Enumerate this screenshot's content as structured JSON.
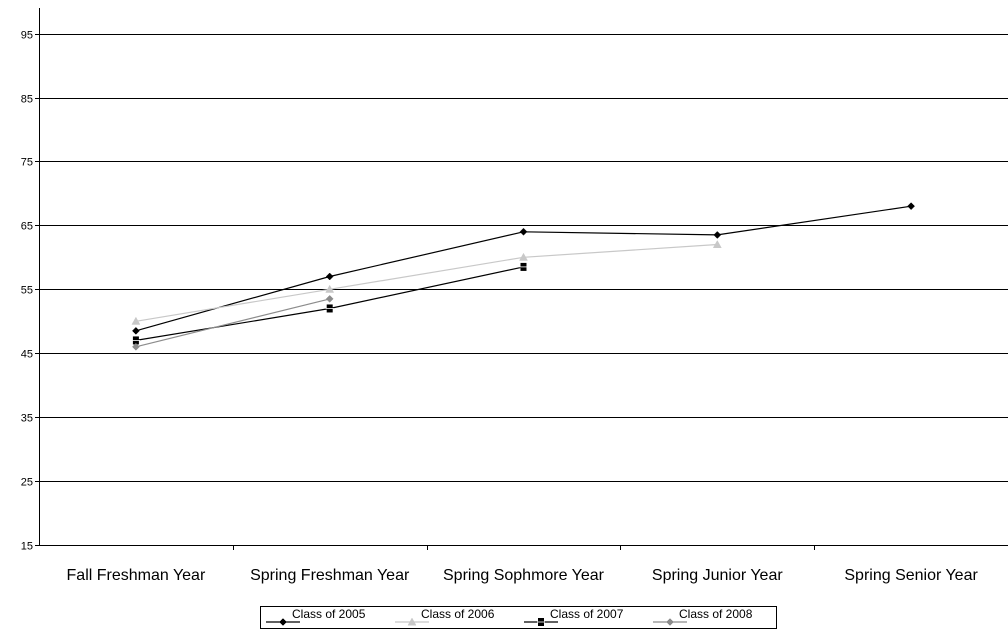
{
  "chart_data": {
    "type": "line",
    "categories": [
      "Fall Freshman Year",
      "Spring Freshman Year",
      "Spring Sophmore Year",
      "Spring Junior Year",
      "Spring Senior Year"
    ],
    "ylim": [
      15,
      99
    ],
    "yticks": [
      15,
      25,
      35,
      45,
      55,
      65,
      75,
      85,
      95
    ],
    "grid": true,
    "legend_position": "bottom",
    "series": [
      {
        "name": "Class of 2005",
        "color": "#000000",
        "marker": "diamond",
        "values": [
          48.5,
          57,
          64,
          63.5,
          68
        ]
      },
      {
        "name": "Class of 2006",
        "color": "#c8c8c8",
        "marker": "triangle",
        "values": [
          50,
          55,
          60,
          62,
          null
        ]
      },
      {
        "name": "Class of 2007",
        "color": "#000000",
        "marker": "square",
        "values": [
          47,
          52,
          58.5,
          null,
          null
        ]
      },
      {
        "name": "Class of 2008",
        "color": "#8c8c8c",
        "marker": "diamond",
        "values": [
          46,
          53.5,
          null,
          null,
          null
        ]
      }
    ]
  }
}
